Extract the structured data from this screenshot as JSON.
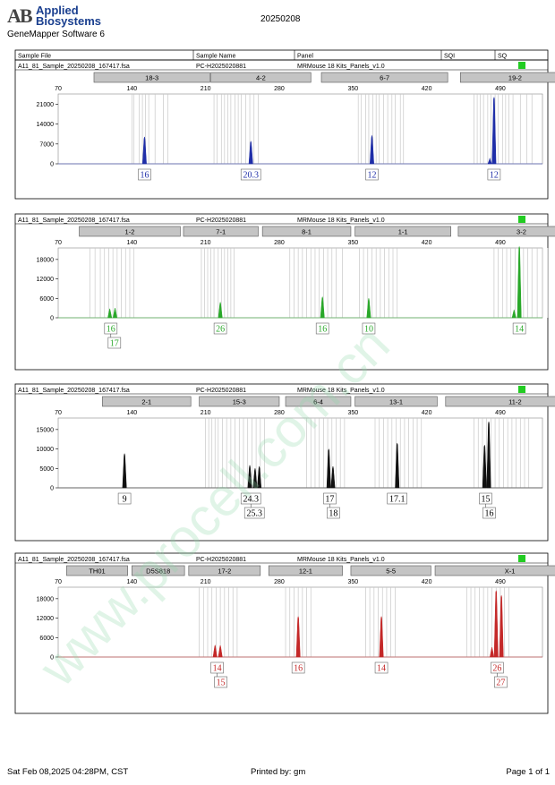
{
  "header": {
    "logo_mark": "AB",
    "logo_line1": "Applied",
    "logo_line2": "Biosystems",
    "software": "GeneMapper Software 6",
    "run_date": "20250208"
  },
  "columns": {
    "sample_file": "Sample File",
    "sample_name": "Sample Name",
    "panel": "Panel",
    "sqi": "SQI",
    "sq": "SQ"
  },
  "colors": {
    "blue": "#1f2ea8",
    "green": "#29a829",
    "black": "#111111",
    "red": "#c42828",
    "status": "#22cc22",
    "bin_gray": "#c8c8c8"
  },
  "footer": {
    "timestamp": "Sat Feb 08,2025 04:28PM, CST",
    "printed_by": "Printed by: gm",
    "page": "Page 1 of 1"
  },
  "watermark": "www.procell.com.cn",
  "chart_data": [
    {
      "type": "line",
      "color": "blue",
      "sample_file": "A11_81_Sample_20250208_167417.fsa",
      "sample_name": "PC-H2025020881",
      "panel": "MRMouse 18 Kits_Panels_v1.0",
      "x_ticks": [
        70,
        140,
        210,
        280,
        350,
        420,
        490
      ],
      "x_range": [
        70,
        530
      ],
      "y_ticks": [
        0,
        7000,
        14000,
        21000
      ],
      "y_range": [
        0,
        24000
      ],
      "markers": [
        {
          "label": "18-3",
          "start": 104,
          "end": 214
        },
        {
          "label": "4-2",
          "start": 215,
          "end": 310
        },
        {
          "label": "6-7",
          "start": 320,
          "end": 440
        },
        {
          "label": "19-2",
          "start": 452,
          "end": 556
        }
      ],
      "bins": [
        [
          140,
          142,
          147,
          150,
          153,
          156,
          162,
          170,
          174
        ],
        [
          218,
          221,
          225,
          228,
          231,
          234,
          238,
          241,
          244,
          248,
          252,
          256,
          260
        ],
        [
          355,
          358,
          362,
          365,
          369,
          372,
          375,
          379,
          383,
          387,
          390,
          395,
          398
        ],
        [
          465,
          468,
          471,
          474,
          478,
          481,
          485,
          488,
          492,
          495,
          498,
          502,
          509,
          515,
          520
        ]
      ],
      "peaks": [
        {
          "x": 152,
          "y": 9500
        },
        {
          "x": 253,
          "y": 8000
        },
        {
          "x": 368,
          "y": 10000
        },
        {
          "x": 480,
          "y": 2000
        },
        {
          "x": 484,
          "y": 23500
        }
      ],
      "alleles": [
        {
          "x": 152,
          "labels": [
            "16"
          ]
        },
        {
          "x": 253,
          "labels": [
            "20.3"
          ]
        },
        {
          "x": 368,
          "labels": [
            "12"
          ]
        },
        {
          "x": 484,
          "labels": [
            "12"
          ]
        }
      ]
    },
    {
      "type": "line",
      "color": "green",
      "sample_file": "A11_81_Sample_20250208_167417.fsa",
      "sample_name": "PC-H2025020881",
      "panel": "MRMouse 18 Kits_Panels_v1.0",
      "x_ticks": [
        70,
        140,
        210,
        280,
        350,
        420,
        490
      ],
      "x_range": [
        70,
        530
      ],
      "y_ticks": [
        0,
        6000,
        12000,
        18000
      ],
      "y_range": [
        0,
        21000
      ],
      "markers": [
        {
          "label": "1-2",
          "start": 90,
          "end": 186
        },
        {
          "label": "7-1",
          "start": 189,
          "end": 260
        },
        {
          "label": "8-1",
          "start": 264,
          "end": 348
        },
        {
          "label": "1-1",
          "start": 352,
          "end": 443
        },
        {
          "label": "3-2",
          "start": 450,
          "end": 570
        }
      ],
      "bins": [
        [
          100,
          105,
          110,
          114,
          118,
          122,
          126,
          130,
          134,
          138,
          142
        ],
        [
          206,
          209,
          212,
          215,
          218,
          222,
          225,
          228,
          231,
          234,
          237
        ],
        [
          290,
          294,
          298,
          302,
          306,
          310,
          314,
          318,
          322,
          326,
          330,
          334,
          340
        ],
        [
          356,
          360,
          364,
          368,
          372,
          376,
          380,
          384,
          388,
          392
        ],
        [
          484,
          488,
          492,
          496,
          500,
          504,
          508,
          512,
          516,
          520,
          525,
          530,
          535
        ]
      ],
      "peaks": [
        {
          "x": 119,
          "y": 2800
        },
        {
          "x": 124,
          "y": 3000
        },
        {
          "x": 224,
          "y": 4800
        },
        {
          "x": 321,
          "y": 6500
        },
        {
          "x": 365,
          "y": 6000
        },
        {
          "x": 503,
          "y": 2500
        },
        {
          "x": 508,
          "y": 22000
        }
      ],
      "alleles": [
        {
          "x": 120,
          "labels": [
            "16",
            "17"
          ]
        },
        {
          "x": 224,
          "labels": [
            "26"
          ]
        },
        {
          "x": 321,
          "labels": [
            "16"
          ]
        },
        {
          "x": 365,
          "labels": [
            "10"
          ]
        },
        {
          "x": 508,
          "labels": [
            "14"
          ]
        }
      ]
    },
    {
      "type": "line",
      "color": "black",
      "sample_file": "A11_81_Sample_20250208_167417.fsa",
      "sample_name": "PC-H2025020881",
      "panel": "MRMouse 18 Kits_Panels_v1.0",
      "x_ticks": [
        70,
        140,
        210,
        280,
        350,
        420,
        490
      ],
      "x_range": [
        70,
        530
      ],
      "y_ticks": [
        0,
        5000,
        10000,
        15000
      ],
      "y_range": [
        0,
        17500
      ],
      "markers": [
        {
          "label": "2-1",
          "start": 112,
          "end": 196
        },
        {
          "label": "15-3",
          "start": 204,
          "end": 280
        },
        {
          "label": "6-4",
          "start": 286,
          "end": 348
        },
        {
          "label": "13-1",
          "start": 352,
          "end": 430
        },
        {
          "label": "11-2",
          "start": 438,
          "end": 570
        }
      ],
      "bins": [
        [
          210,
          213,
          216,
          219,
          222,
          226,
          230,
          234,
          238,
          242,
          246,
          250,
          254,
          258,
          262,
          266
        ],
        [
          306,
          310,
          314,
          318,
          322,
          326,
          330,
          334,
          338,
          342
        ],
        [
          371,
          375,
          379,
          383,
          387,
          391,
          395,
          399,
          403,
          407,
          411,
          415
        ],
        [
          465,
          469,
          473,
          477,
          481,
          485,
          489,
          493,
          497,
          501,
          505,
          509,
          513,
          517
        ]
      ],
      "peaks": [
        {
          "x": 133,
          "y": 8800
        },
        {
          "x": 252,
          "y": 5800
        },
        {
          "x": 257,
          "y": 5000
        },
        {
          "x": 261,
          "y": 5500
        },
        {
          "x": 327,
          "y": 10000
        },
        {
          "x": 331,
          "y": 5500
        },
        {
          "x": 392,
          "y": 11500
        },
        {
          "x": 475,
          "y": 11000
        },
        {
          "x": 479,
          "y": 17000
        }
      ],
      "alleles": [
        {
          "x": 133,
          "labels": [
            "9"
          ]
        },
        {
          "x": 253,
          "labels": [
            "24.3",
            "25.3"
          ]
        },
        {
          "x": 328,
          "labels": [
            "17",
            "18"
          ]
        },
        {
          "x": 392,
          "labels": [
            "17.1"
          ]
        },
        {
          "x": 476,
          "labels": [
            "15",
            "16"
          ]
        }
      ]
    },
    {
      "type": "line",
      "color": "red",
      "sample_file": "A11_81_Sample_20250208_167417.fsa",
      "sample_name": "PC-H2025020881",
      "panel": "MRMouse 18 Kits_Panels_v1.0",
      "x_ticks": [
        70,
        140,
        210,
        280,
        350,
        420,
        490
      ],
      "x_range": [
        70,
        530
      ],
      "y_ticks": [
        0,
        6000,
        12000,
        18000
      ],
      "y_range": [
        0,
        21000
      ],
      "markers": [
        {
          "label": "TH01",
          "start": 78,
          "end": 136
        },
        {
          "label": "D5S818",
          "start": 140,
          "end": 190
        },
        {
          "label": "17-2",
          "start": 194,
          "end": 262
        },
        {
          "label": "12-1",
          "start": 270,
          "end": 340
        },
        {
          "label": "5-5",
          "start": 348,
          "end": 424
        },
        {
          "label": "X-1",
          "start": 428,
          "end": 570
        }
      ],
      "bins": [
        [
          204,
          208,
          212,
          216,
          220,
          224,
          228,
          232,
          236,
          240
        ],
        [
          286,
          290,
          294,
          298,
          302,
          306,
          310
        ],
        [
          362,
          366,
          370,
          374,
          378,
          382,
          386,
          390
        ],
        [
          458,
          462,
          466,
          470,
          474,
          478,
          482,
          486,
          490,
          494,
          498
        ]
      ],
      "peaks": [
        {
          "x": 219,
          "y": 3700
        },
        {
          "x": 224,
          "y": 3600
        },
        {
          "x": 298,
          "y": 12500
        },
        {
          "x": 377,
          "y": 12500
        },
        {
          "x": 482,
          "y": 3000
        },
        {
          "x": 486,
          "y": 20500
        },
        {
          "x": 491,
          "y": 19000
        }
      ],
      "alleles": [
        {
          "x": 221,
          "labels": [
            "14",
            "15"
          ]
        },
        {
          "x": 298,
          "labels": [
            "16"
          ]
        },
        {
          "x": 377,
          "labels": [
            "14"
          ]
        },
        {
          "x": 487,
          "labels": [
            "26",
            "27"
          ]
        }
      ]
    }
  ]
}
